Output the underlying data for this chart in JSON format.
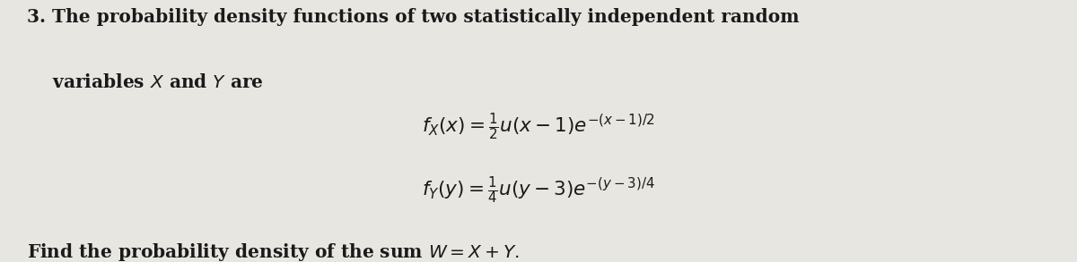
{
  "background_color": "#e8e6e0",
  "text_color": "#1a1a1a",
  "figsize": [
    12.0,
    2.93
  ],
  "dpi": 100,
  "prefix": "3.",
  "line1_main": " The probability density functions of two statistically independent random",
  "line2": "variables $X$ and $Y$ are",
  "eq1": "$f_X(x) = \\frac{1}{2}u(x-1)e^{-(x-1)/2}$",
  "eq2": "$f_Y(y) = \\frac{1}{4}u(y-3)e^{-(y-3)/4}$",
  "line3": "Find the probability density of the sum $W = X + Y.$",
  "font_size_body": 14.5,
  "font_size_eq": 15.5
}
